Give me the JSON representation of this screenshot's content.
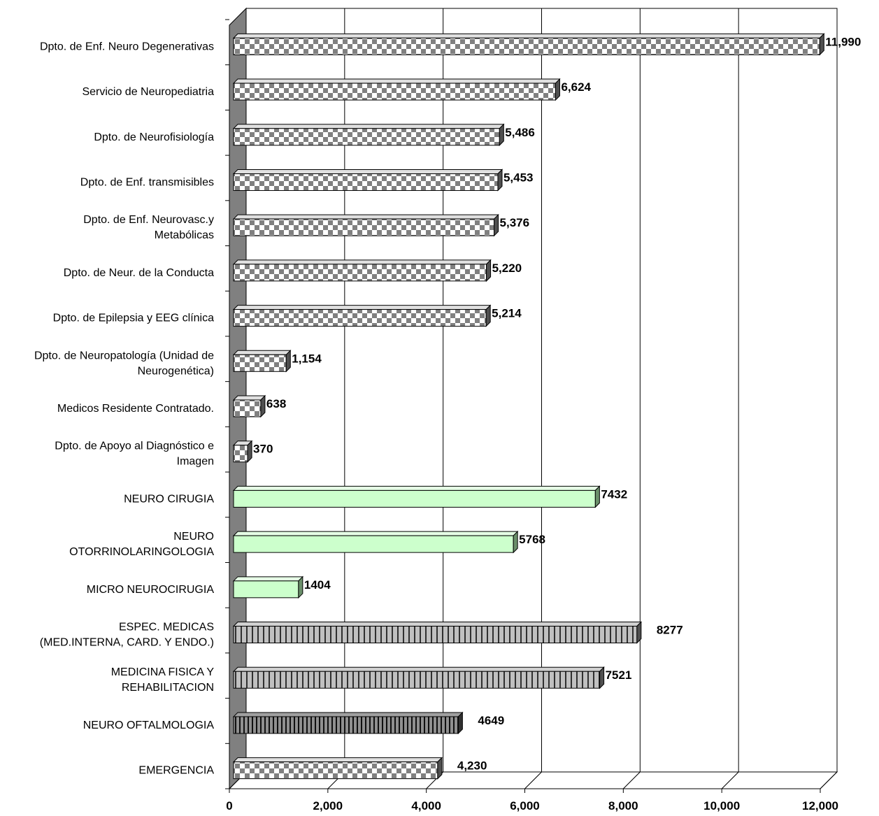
{
  "chart_data": {
    "type": "bar",
    "orientation": "horizontal",
    "title": "",
    "xlabel": "",
    "ylabel": "",
    "xlim": [
      0,
      12000
    ],
    "x_ticks": [
      "0",
      "2,000",
      "4,000",
      "6,000",
      "8,000",
      "10,000",
      "12,000"
    ],
    "grid": "vertical",
    "categories": [
      [
        "Dpto. de Enf. Neuro Degenerativas"
      ],
      [
        "Servicio de Neuropediatria"
      ],
      [
        "Dpto. de Neurofisiología"
      ],
      [
        "Dpto. de Enf. transmisibles"
      ],
      [
        "Dpto. de Enf. Neurovasc.y",
        "Metabólicas"
      ],
      [
        "Dpto. de Neur. de la Conducta"
      ],
      [
        "Dpto. de Epilepsia y EEG clínica"
      ],
      [
        "Dpto. de Neuropatología (Unidad de",
        "Neurogenética)"
      ],
      [
        "Medicos Residente Contratado."
      ],
      [
        "Dpto. de Apoyo al Diagnóstico e",
        "Imagen"
      ],
      [
        "NEURO CIRUGIA"
      ],
      [
        "NEURO",
        "OTORRINOLARINGOLOGIA"
      ],
      [
        "MICRO NEUROCIRUGIA"
      ],
      [
        "ESPEC. MEDICAS",
        "(MED.INTERNA, CARD. Y ENDO.)"
      ],
      [
        "MEDICINA  FISICA Y",
        "REHABILITACION"
      ],
      [
        "NEURO OFTALMOLOGIA"
      ],
      [
        "EMERGENCIA"
      ]
    ],
    "values": [
      11990,
      6624,
      5486,
      5453,
      5376,
      5220,
      5214,
      1154,
      638,
      370,
      7432,
      5768,
      1404,
      8277,
      7521,
      4649,
      4230
    ],
    "value_labels": [
      "11,990",
      "6,624",
      "5,486",
      "5,453",
      "5,376",
      "5,220",
      "5,214",
      "1,154",
      "638",
      "370",
      "7432",
      "5768",
      "1404",
      "8277",
      "7521",
      "4649",
      "4,230"
    ],
    "bar_styles": [
      "checker",
      "checker",
      "checker",
      "checker",
      "checker",
      "checker",
      "checker",
      "checker",
      "checker",
      "checker",
      "green",
      "green",
      "green",
      "stripe",
      "stripe",
      "stripe-dark",
      "checker"
    ],
    "colors": {
      "green": "#ccffcc",
      "stripe": "#c0c0c0",
      "stripe_dark": "#808080",
      "checker_dark": "#808080",
      "checker_light": "#ffffff",
      "wall": "#808080",
      "grid": "#000000"
    }
  }
}
